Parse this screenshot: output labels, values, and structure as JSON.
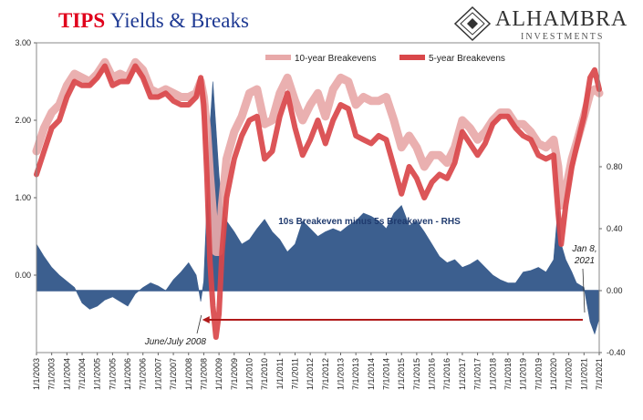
{
  "header": {
    "title_part1": "TIPS",
    "title_part2": "Yields & Breaks",
    "logo_name": "ALHAMBRA",
    "logo_sub": "INVESTMENTS"
  },
  "colors": {
    "be10": "#e8a9a9",
    "be5": "#d9474a",
    "spread": "#3c5f8f",
    "arrow": "#b01a1a"
  },
  "chart_data": {
    "type": "line",
    "title": "TIPS Yields & Breaks",
    "legend_position": "top-right",
    "grid": false,
    "y_left": {
      "range": [
        -1.0,
        3.0
      ],
      "ticks": [
        "3.00",
        "2.00",
        "1.00",
        "0.00"
      ],
      "tick_values": [
        3.0,
        2.0,
        1.0,
        0.0
      ]
    },
    "y_right": {
      "range": [
        -0.4,
        1.6
      ],
      "ticks": [
        "0.80",
        "0.40",
        "0.00",
        "-0.40"
      ],
      "tick_values": [
        0.8,
        0.4,
        0.0,
        -0.4
      ]
    },
    "x_ticks": [
      "1/1/2003",
      "7/1/2003",
      "1/1/2004",
      "7/1/2004",
      "1/1/2005",
      "7/1/2005",
      "1/1/2006",
      "7/1/2006",
      "1/1/2007",
      "7/1/2007",
      "1/1/2008",
      "7/1/2008",
      "1/1/2009",
      "7/1/2009",
      "1/1/2010",
      "7/1/2010",
      "1/1/2011",
      "7/1/2011",
      "1/1/2012",
      "7/1/2012",
      "1/1/2013",
      "7/1/2013",
      "1/1/2014",
      "7/1/2014",
      "1/1/2015",
      "7/1/2015",
      "1/1/2016",
      "7/1/2016",
      "1/1/2017",
      "7/1/2017",
      "1/1/2018",
      "7/1/2018",
      "1/1/2019",
      "7/1/2019",
      "1/1/2020",
      "7/1/2020",
      "1/1/2021",
      "7/1/2021"
    ],
    "x_range": [
      2003.0,
      2021.5
    ],
    "series": [
      {
        "name": "10-year Breakevens",
        "axis": "left",
        "x": [
          2003.0,
          2003.25,
          2003.5,
          2003.75,
          2004.0,
          2004.25,
          2004.5,
          2004.75,
          2005.0,
          2005.25,
          2005.5,
          2005.75,
          2006.0,
          2006.25,
          2006.5,
          2006.75,
          2007.0,
          2007.25,
          2007.5,
          2007.75,
          2008.0,
          2008.25,
          2008.4,
          2008.5,
          2008.6,
          2008.7,
          2008.8,
          2008.9,
          2009.0,
          2009.1,
          2009.25,
          2009.5,
          2009.75,
          2010.0,
          2010.25,
          2010.5,
          2010.75,
          2011.0,
          2011.25,
          2011.5,
          2011.75,
          2012.0,
          2012.25,
          2012.5,
          2012.75,
          2013.0,
          2013.25,
          2013.5,
          2013.75,
          2014.0,
          2014.25,
          2014.5,
          2014.75,
          2015.0,
          2015.25,
          2015.5,
          2015.75,
          2016.0,
          2016.25,
          2016.5,
          2016.75,
          2017.0,
          2017.25,
          2017.5,
          2017.75,
          2018.0,
          2018.25,
          2018.5,
          2018.75,
          2019.0,
          2019.25,
          2019.5,
          2019.75,
          2020.0,
          2020.15,
          2020.25,
          2020.4,
          2020.6,
          2020.75,
          2021.0,
          2021.2,
          2021.35,
          2021.5
        ],
        "values": [
          1.6,
          1.9,
          2.1,
          2.2,
          2.45,
          2.6,
          2.55,
          2.5,
          2.6,
          2.75,
          2.55,
          2.6,
          2.55,
          2.75,
          2.65,
          2.4,
          2.35,
          2.4,
          2.35,
          2.3,
          2.3,
          2.35,
          2.5,
          2.3,
          1.9,
          1.3,
          0.8,
          0.3,
          0.3,
          0.9,
          1.5,
          1.85,
          2.05,
          2.35,
          2.4,
          1.95,
          2.0,
          2.35,
          2.55,
          2.25,
          2.0,
          2.2,
          2.35,
          2.05,
          2.4,
          2.55,
          2.5,
          2.2,
          2.3,
          2.25,
          2.25,
          2.3,
          2.0,
          1.65,
          1.8,
          1.65,
          1.4,
          1.55,
          1.55,
          1.45,
          1.65,
          2.0,
          1.9,
          1.75,
          1.85,
          2.0,
          2.1,
          2.1,
          1.95,
          1.95,
          1.85,
          1.7,
          1.65,
          1.75,
          1.4,
          0.9,
          1.1,
          1.5,
          1.7,
          2.05,
          2.35,
          2.4,
          2.35
        ]
      },
      {
        "name": "5-year Breakevens",
        "axis": "left",
        "x": [
          2003.0,
          2003.25,
          2003.5,
          2003.75,
          2004.0,
          2004.25,
          2004.5,
          2004.75,
          2005.0,
          2005.25,
          2005.5,
          2005.75,
          2006.0,
          2006.25,
          2006.5,
          2006.75,
          2007.0,
          2007.25,
          2007.5,
          2007.75,
          2008.0,
          2008.25,
          2008.4,
          2008.5,
          2008.6,
          2008.7,
          2008.8,
          2008.9,
          2009.0,
          2009.1,
          2009.25,
          2009.5,
          2009.75,
          2010.0,
          2010.25,
          2010.5,
          2010.75,
          2011.0,
          2011.25,
          2011.5,
          2011.75,
          2012.0,
          2012.25,
          2012.5,
          2012.75,
          2013.0,
          2013.25,
          2013.5,
          2013.75,
          2014.0,
          2014.25,
          2014.5,
          2014.75,
          2015.0,
          2015.25,
          2015.5,
          2015.75,
          2016.0,
          2016.25,
          2016.5,
          2016.75,
          2017.0,
          2017.25,
          2017.5,
          2017.75,
          2018.0,
          2018.25,
          2018.5,
          2018.75,
          2019.0,
          2019.25,
          2019.5,
          2019.75,
          2020.0,
          2020.15,
          2020.25,
          2020.4,
          2020.6,
          2020.75,
          2021.0,
          2021.2,
          2021.35,
          2021.5
        ],
        "values": [
          1.3,
          1.6,
          1.9,
          2.0,
          2.3,
          2.5,
          2.45,
          2.45,
          2.55,
          2.7,
          2.45,
          2.5,
          2.5,
          2.7,
          2.55,
          2.3,
          2.3,
          2.35,
          2.25,
          2.2,
          2.2,
          2.3,
          2.55,
          2.2,
          1.3,
          0.2,
          -0.4,
          -0.8,
          -0.5,
          0.3,
          1.0,
          1.5,
          1.8,
          2.0,
          2.05,
          1.5,
          1.6,
          2.05,
          2.35,
          1.9,
          1.55,
          1.75,
          2.0,
          1.7,
          2.0,
          2.2,
          2.15,
          1.8,
          1.75,
          1.7,
          1.8,
          1.75,
          1.4,
          1.05,
          1.4,
          1.25,
          1.0,
          1.2,
          1.3,
          1.25,
          1.45,
          1.85,
          1.7,
          1.55,
          1.7,
          1.95,
          2.05,
          2.05,
          1.9,
          1.8,
          1.75,
          1.55,
          1.5,
          1.55,
          0.8,
          0.4,
          0.9,
          1.4,
          1.65,
          2.05,
          2.55,
          2.65,
          2.4
        ]
      },
      {
        "name": "10s Breakeven minus 5s Breakeven - RHS",
        "axis": "right",
        "render": "area",
        "x": [
          2003.0,
          2003.25,
          2003.5,
          2003.75,
          2004.0,
          2004.25,
          2004.5,
          2004.75,
          2005.0,
          2005.25,
          2005.5,
          2005.75,
          2006.0,
          2006.25,
          2006.5,
          2006.75,
          2007.0,
          2007.25,
          2007.5,
          2007.75,
          2008.0,
          2008.25,
          2008.4,
          2008.5,
          2008.6,
          2008.7,
          2008.8,
          2008.9,
          2009.0,
          2009.1,
          2009.25,
          2009.5,
          2009.75,
          2010.0,
          2010.25,
          2010.5,
          2010.75,
          2011.0,
          2011.25,
          2011.5,
          2011.75,
          2012.0,
          2012.25,
          2012.5,
          2012.75,
          2013.0,
          2013.25,
          2013.5,
          2013.75,
          2014.0,
          2014.25,
          2014.5,
          2014.75,
          2015.0,
          2015.25,
          2015.5,
          2015.75,
          2016.0,
          2016.25,
          2016.5,
          2016.75,
          2017.0,
          2017.25,
          2017.5,
          2017.75,
          2018.0,
          2018.25,
          2018.5,
          2018.75,
          2019.0,
          2019.25,
          2019.5,
          2019.75,
          2020.0,
          2020.15,
          2020.25,
          2020.4,
          2020.6,
          2020.75,
          2021.0,
          2021.2,
          2021.35,
          2021.5
        ],
        "values": [
          0.3,
          0.22,
          0.15,
          0.1,
          0.06,
          0.02,
          -0.08,
          -0.12,
          -0.1,
          -0.06,
          -0.04,
          -0.07,
          -0.1,
          -0.02,
          0.02,
          0.05,
          0.03,
          0.0,
          0.07,
          0.12,
          0.18,
          0.1,
          -0.07,
          0.06,
          0.55,
          1.05,
          1.35,
          1.05,
          0.75,
          0.55,
          0.45,
          0.38,
          0.3,
          0.33,
          0.4,
          0.46,
          0.38,
          0.33,
          0.25,
          0.3,
          0.45,
          0.4,
          0.35,
          0.38,
          0.4,
          0.38,
          0.42,
          0.45,
          0.5,
          0.48,
          0.45,
          0.4,
          0.5,
          0.55,
          0.42,
          0.45,
          0.38,
          0.3,
          0.22,
          0.18,
          0.2,
          0.15,
          0.17,
          0.2,
          0.15,
          0.1,
          0.07,
          0.05,
          0.05,
          0.12,
          0.13,
          0.15,
          0.12,
          0.2,
          0.55,
          0.3,
          0.2,
          0.12,
          0.05,
          0.02,
          -0.2,
          -0.28,
          -0.18
        ]
      }
    ],
    "annotations": {
      "spread_label": "10s Breakeven minus 5s Breakeven - RHS",
      "left_marker": "June/July 2008",
      "right_marker_line1": "Jan 8,",
      "right_marker_line2": "2021",
      "left_marker_x": 2008.45,
      "right_marker_x": 2021.02
    }
  }
}
